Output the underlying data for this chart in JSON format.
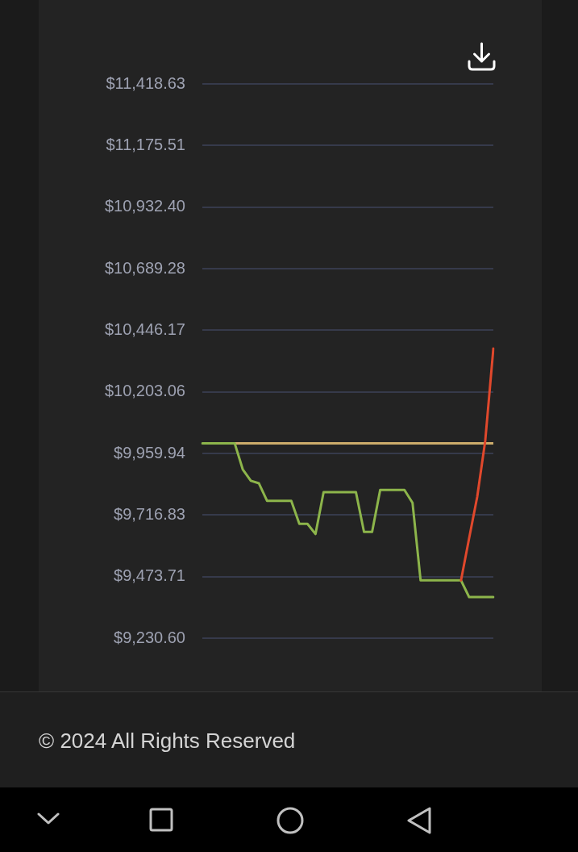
{
  "chart_data": {
    "type": "line",
    "categories": [
      null,
      null,
      null,
      null,
      null,
      null,
      null,
      null,
      null,
      null,
      null,
      null,
      null,
      null,
      null,
      null,
      null,
      null,
      null,
      null,
      null,
      null,
      null,
      null,
      null,
      null,
      null,
      null,
      null,
      null,
      null,
      null,
      null,
      null,
      null,
      null,
      null
    ],
    "series": [
      {
        "color": "#8db54b",
        "values": [
          10000,
          10000,
          10000,
          10000,
          10000,
          9897,
          9852,
          9842,
          9773,
          9773,
          9773,
          9773,
          9682,
          9682,
          9642,
          9807,
          9807,
          9807,
          9807,
          9807,
          9650,
          9650,
          9816,
          9816,
          9816,
          9816,
          9765,
          9459,
          9459,
          9459,
          9459,
          9459,
          9459,
          9393,
          9393,
          9393,
          9393
        ]
      },
      {
        "color": "#e0482c",
        "values": [
          null,
          null,
          null,
          null,
          null,
          null,
          null,
          null,
          null,
          null,
          null,
          null,
          null,
          null,
          null,
          null,
          null,
          null,
          null,
          null,
          null,
          null,
          null,
          null,
          null,
          null,
          null,
          null,
          null,
          null,
          null,
          null,
          9459,
          9625,
          9788,
          10011,
          10374
        ]
      }
    ],
    "ylim": [
      9230.6,
      11418.63
    ],
    "yticks": [
      {
        "value": 9230.6,
        "label": "$9,230.60"
      },
      {
        "value": 9473.71,
        "label": "$9,473.71"
      },
      {
        "value": 9716.83,
        "label": "$9,716.83"
      },
      {
        "value": 9959.94,
        "label": "$9,959.94"
      },
      {
        "value": 10203.06,
        "label": "$10,203.06"
      },
      {
        "value": 10446.17,
        "label": "$10,446.17"
      },
      {
        "value": 10689.28,
        "label": "$10,689.28"
      },
      {
        "value": 10932.4,
        "label": "$10,932.40"
      },
      {
        "value": 11175.51,
        "label": "$11,175.51"
      },
      {
        "value": 11418.63,
        "label": "$11,418.63"
      }
    ],
    "ref_lines": [
      {
        "axis": "y",
        "value": 10000,
        "color": "#cdac6b"
      }
    ],
    "grid": "y",
    "tick_labels": "y",
    "annotations": [
      "© 2024 All Rights Reserved"
    ]
  }
}
